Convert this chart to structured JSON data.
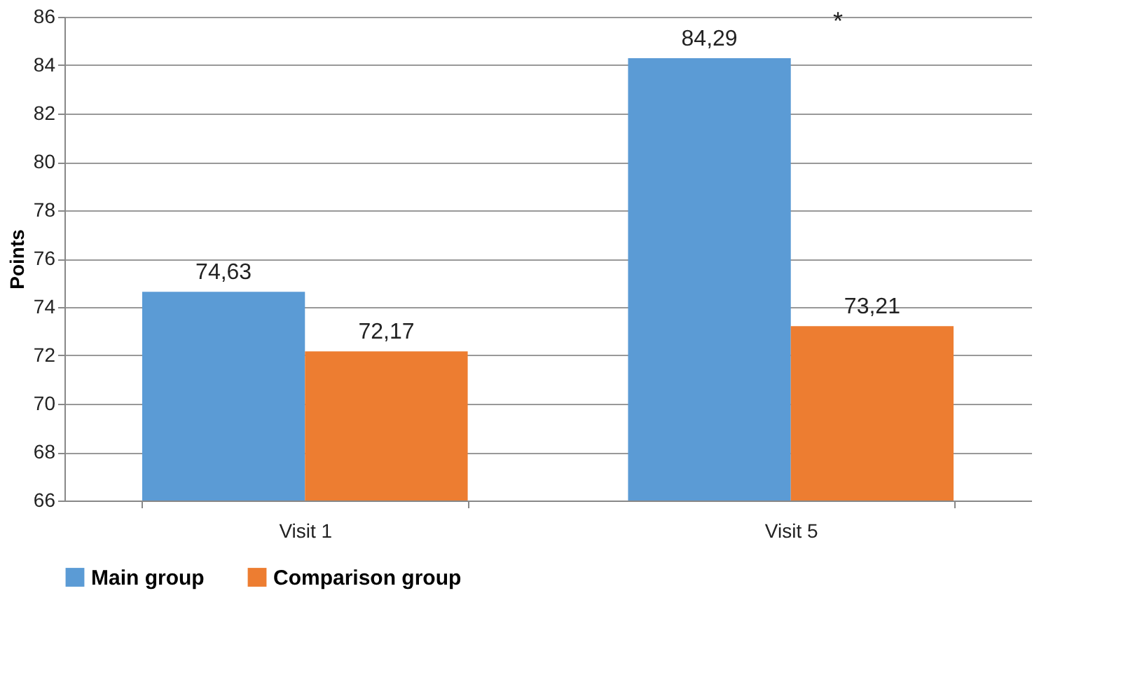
{
  "chart_data": {
    "type": "bar",
    "ylabel": "Points",
    "categories": [
      "Visit 1",
      "Visit 5"
    ],
    "series": [
      {
        "name": "Main group",
        "color": "#5b9bd5",
        "values": [
          74.63,
          84.29
        ],
        "value_labels": [
          "74,63",
          "84,29"
        ]
      },
      {
        "name": "Comparison group",
        "color": "#ed7d31",
        "values": [
          72.17,
          73.21
        ],
        "value_labels": [
          "72,17",
          "73,21"
        ]
      }
    ],
    "ylim": [
      66,
      86
    ],
    "yticks": [
      66,
      68,
      70,
      72,
      74,
      76,
      78,
      80,
      82,
      84,
      86
    ],
    "grid": "y",
    "legend": "bottom",
    "annotations": [
      "*"
    ]
  }
}
